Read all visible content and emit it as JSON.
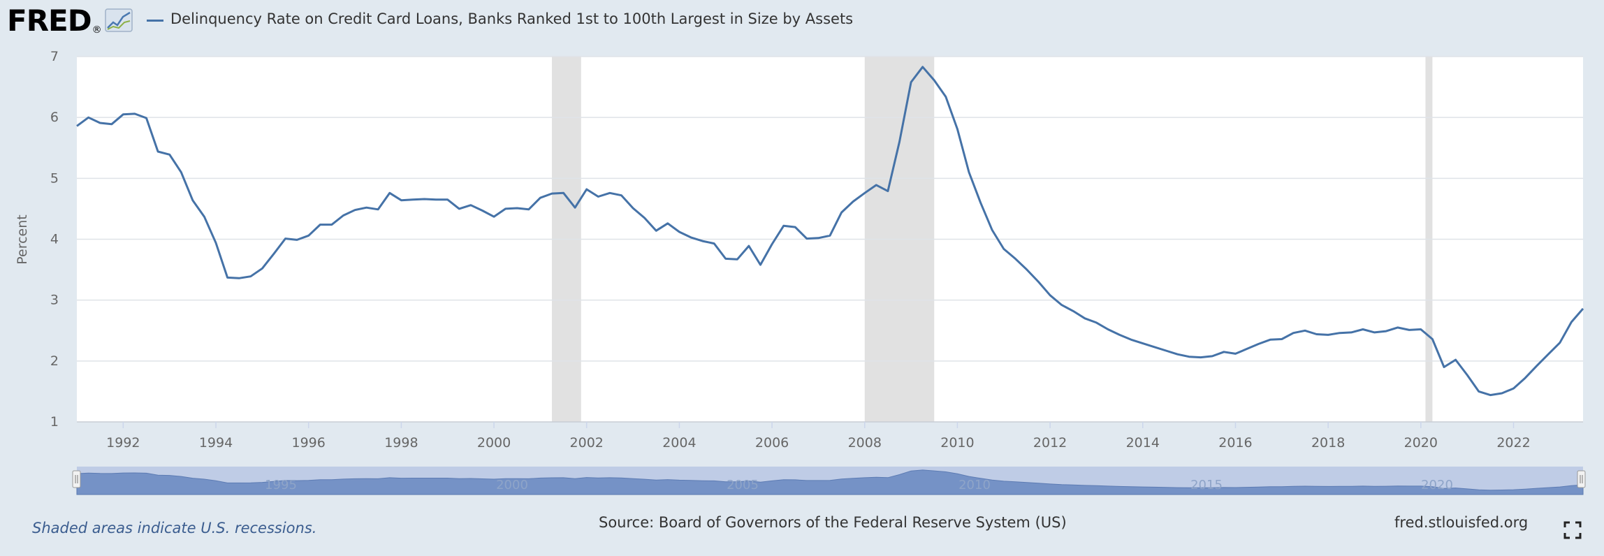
{
  "header": {
    "logo_text": "FRED",
    "logo_reg": "®",
    "title": "Delinquency Rate on Credit Card Loans, Banks Ranked 1st to 100th Largest in Size by Assets",
    "series_color": "#4572a7"
  },
  "footer": {
    "note": "Shaded areas indicate U.S. recessions.",
    "source": "Source: Board of Governors of the Federal Reserve System (US)",
    "site": "fred.stlouisfed.org"
  },
  "icons": {
    "fullscreen": "fullscreen-icon",
    "logo_graph": "chart-line-icon"
  },
  "chart_data": {
    "type": "line",
    "ylabel": "Percent",
    "xlabel": "",
    "ylim": [
      1,
      7
    ],
    "yticks": [
      1,
      2,
      3,
      4,
      5,
      6,
      7
    ],
    "xticks": [
      1992,
      1994,
      1996,
      1998,
      2000,
      2002,
      2004,
      2006,
      2008,
      2010,
      2012,
      2014,
      2016,
      2018,
      2020,
      2022
    ],
    "xlim": [
      1991.0,
      2023.5
    ],
    "grid": "horizontal",
    "recessions": [
      [
        2001.25,
        2001.88
      ],
      [
        2008.0,
        2009.5
      ],
      [
        2020.1,
        2020.25
      ]
    ],
    "navigator_labels": [
      "1995",
      "2000",
      "2005",
      "2010",
      "2015",
      "2020"
    ],
    "series": [
      {
        "values": [
          [
            1991.0,
            5.86
          ],
          [
            1991.25,
            6.0
          ],
          [
            1991.5,
            5.91
          ],
          [
            1991.75,
            5.89
          ],
          [
            1992.0,
            6.05
          ],
          [
            1992.25,
            6.06
          ],
          [
            1992.5,
            5.99
          ],
          [
            1992.75,
            5.44
          ],
          [
            1993.0,
            5.39
          ],
          [
            1993.25,
            5.1
          ],
          [
            1993.5,
            4.64
          ],
          [
            1993.75,
            4.37
          ],
          [
            1994.0,
            3.94
          ],
          [
            1994.25,
            3.37
          ],
          [
            1994.5,
            3.36
          ],
          [
            1994.75,
            3.39
          ],
          [
            1995.0,
            3.52
          ],
          [
            1995.25,
            3.76
          ],
          [
            1995.5,
            4.01
          ],
          [
            1995.75,
            3.99
          ],
          [
            1996.0,
            4.06
          ],
          [
            1996.25,
            4.24
          ],
          [
            1996.5,
            4.24
          ],
          [
            1996.75,
            4.39
          ],
          [
            1997.0,
            4.48
          ],
          [
            1997.25,
            4.52
          ],
          [
            1997.5,
            4.49
          ],
          [
            1997.75,
            4.76
          ],
          [
            1998.0,
            4.64
          ],
          [
            1998.25,
            4.65
          ],
          [
            1998.5,
            4.66
          ],
          [
            1998.75,
            4.65
          ],
          [
            1999.0,
            4.65
          ],
          [
            1999.25,
            4.5
          ],
          [
            1999.5,
            4.56
          ],
          [
            1999.75,
            4.47
          ],
          [
            2000.0,
            4.37
          ],
          [
            2000.25,
            4.5
          ],
          [
            2000.5,
            4.51
          ],
          [
            2000.75,
            4.49
          ],
          [
            2001.0,
            4.68
          ],
          [
            2001.25,
            4.75
          ],
          [
            2001.5,
            4.76
          ],
          [
            2001.75,
            4.52
          ],
          [
            2002.0,
            4.82
          ],
          [
            2002.25,
            4.7
          ],
          [
            2002.5,
            4.76
          ],
          [
            2002.75,
            4.72
          ],
          [
            2003.0,
            4.51
          ],
          [
            2003.25,
            4.35
          ],
          [
            2003.5,
            4.14
          ],
          [
            2003.75,
            4.26
          ],
          [
            2004.0,
            4.12
          ],
          [
            2004.25,
            4.03
          ],
          [
            2004.5,
            3.97
          ],
          [
            2004.75,
            3.93
          ],
          [
            2005.0,
            3.68
          ],
          [
            2005.25,
            3.67
          ],
          [
            2005.5,
            3.89
          ],
          [
            2005.75,
            3.58
          ],
          [
            2006.0,
            3.92
          ],
          [
            2006.25,
            4.22
          ],
          [
            2006.5,
            4.2
          ],
          [
            2006.75,
            4.01
          ],
          [
            2007.0,
            4.02
          ],
          [
            2007.25,
            4.06
          ],
          [
            2007.5,
            4.44
          ],
          [
            2007.75,
            4.62
          ],
          [
            2008.0,
            4.76
          ],
          [
            2008.25,
            4.89
          ],
          [
            2008.5,
            4.79
          ],
          [
            2008.75,
            5.6
          ],
          [
            2009.0,
            6.58
          ],
          [
            2009.25,
            6.83
          ],
          [
            2009.5,
            6.61
          ],
          [
            2009.75,
            6.34
          ],
          [
            2010.0,
            5.81
          ],
          [
            2010.25,
            5.1
          ],
          [
            2010.5,
            4.6
          ],
          [
            2010.75,
            4.15
          ],
          [
            2011.0,
            3.84
          ],
          [
            2011.25,
            3.68
          ],
          [
            2011.5,
            3.5
          ],
          [
            2011.75,
            3.3
          ],
          [
            2012.0,
            3.08
          ],
          [
            2012.25,
            2.92
          ],
          [
            2012.5,
            2.82
          ],
          [
            2012.75,
            2.7
          ],
          [
            2013.0,
            2.63
          ],
          [
            2013.25,
            2.52
          ],
          [
            2013.5,
            2.43
          ],
          [
            2013.75,
            2.35
          ],
          [
            2014.0,
            2.29
          ],
          [
            2014.25,
            2.23
          ],
          [
            2014.5,
            2.17
          ],
          [
            2014.75,
            2.11
          ],
          [
            2015.0,
            2.07
          ],
          [
            2015.25,
            2.06
          ],
          [
            2015.5,
            2.08
          ],
          [
            2015.75,
            2.15
          ],
          [
            2016.0,
            2.12
          ],
          [
            2016.25,
            2.2
          ],
          [
            2016.5,
            2.28
          ],
          [
            2016.75,
            2.35
          ],
          [
            2017.0,
            2.36
          ],
          [
            2017.25,
            2.46
          ],
          [
            2017.5,
            2.5
          ],
          [
            2017.75,
            2.44
          ],
          [
            2018.0,
            2.43
          ],
          [
            2018.25,
            2.46
          ],
          [
            2018.5,
            2.47
          ],
          [
            2018.75,
            2.52
          ],
          [
            2019.0,
            2.47
          ],
          [
            2019.25,
            2.49
          ],
          [
            2019.5,
            2.55
          ],
          [
            2019.75,
            2.51
          ],
          [
            2020.0,
            2.52
          ],
          [
            2020.25,
            2.36
          ],
          [
            2020.5,
            1.9
          ],
          [
            2020.75,
            2.02
          ],
          [
            2021.0,
            1.77
          ],
          [
            2021.25,
            1.5
          ],
          [
            2021.5,
            1.44
          ],
          [
            2021.75,
            1.47
          ],
          [
            2022.0,
            1.55
          ],
          [
            2022.25,
            1.72
          ],
          [
            2022.5,
            1.92
          ],
          [
            2022.75,
            2.11
          ],
          [
            2023.0,
            2.3
          ],
          [
            2023.25,
            2.64
          ],
          [
            2023.5,
            2.86
          ]
        ]
      }
    ]
  }
}
